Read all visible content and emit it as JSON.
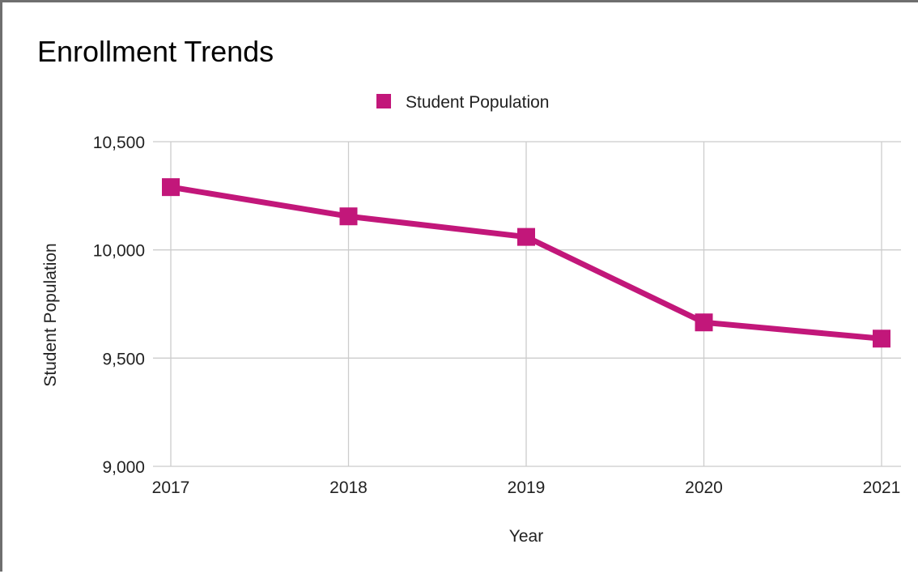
{
  "colors": {
    "series": "#c2177a",
    "grid": "#cccccc",
    "text": "#222222"
  },
  "chart_data": {
    "type": "line",
    "title": "Enrollment Trends",
    "xlabel": "Year",
    "ylabel": "Student Population",
    "legend_position": "top-center",
    "grid": true,
    "categories": [
      "2017",
      "2018",
      "2019",
      "2020",
      "2021"
    ],
    "ylim": [
      9000,
      10500
    ],
    "yticks": [
      9000,
      9500,
      10000,
      10500
    ],
    "ytick_labels": [
      "9,000",
      "9,500",
      "10,000",
      "10,500"
    ],
    "series": [
      {
        "name": "Student Population",
        "values": [
          10290,
          10155,
          10060,
          9665,
          9590
        ]
      }
    ]
  }
}
